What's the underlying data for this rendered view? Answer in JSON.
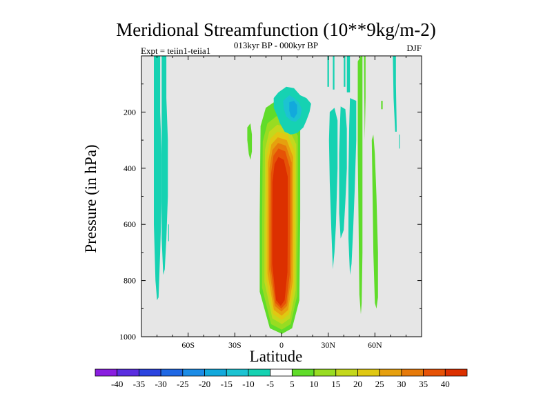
{
  "chart_data": {
    "type": "heatmap",
    "title": "Meridional Streamfunction (10**9kg/m-2)",
    "subtitle": "013kyr BP - 000kyr BP",
    "left_string": "Expt = teiin1-teiia1",
    "right_string": "DJF",
    "xlabel": "Latitude",
    "ylabel": "Pressure (in hPa)",
    "xlim": [
      -90,
      90
    ],
    "ylim": [
      1000,
      0
    ],
    "x_ticks": [
      {
        "value": -60,
        "label": "60S"
      },
      {
        "value": -30,
        "label": "30S"
      },
      {
        "value": 0,
        "label": "0"
      },
      {
        "value": 30,
        "label": "30N"
      },
      {
        "value": 60,
        "label": "60N"
      }
    ],
    "y_ticks": [
      {
        "value": 200,
        "label": "200"
      },
      {
        "value": 400,
        "label": "400"
      },
      {
        "value": 600,
        "label": "600"
      },
      {
        "value": 800,
        "label": "800"
      },
      {
        "value": 1000,
        "label": "1000"
      }
    ],
    "missing_color": "#e6e6e6",
    "colorbar": {
      "labels": [
        "-40",
        "-35",
        "-30",
        "-25",
        "-20",
        "-15",
        "-10",
        "-5",
        "5",
        "10",
        "15",
        "20",
        "25",
        "30",
        "35",
        "40"
      ],
      "colors": [
        "#8a1ee0",
        "#5a2ee0",
        "#2b44e0",
        "#1f68e4",
        "#1c8ce6",
        "#12a9dc",
        "#1cc3d2",
        "#16d2b2",
        "#ffffff",
        "#60dc2a",
        "#98dc22",
        "#c4d81c",
        "#e0c812",
        "#e6a00e",
        "#e67a0a",
        "#e65206",
        "#dc3000"
      ]
    },
    "features": [
      {
        "name": "cross-equatorial Hadley cell",
        "sign": "positive",
        "lat_range": [
          -14,
          12
        ],
        "p_range": [
          160,
          990
        ],
        "max": 40
      },
      {
        "name": "upper-level negative cell",
        "sign": "negative",
        "lat_range": [
          -5,
          18
        ],
        "p_range": [
          150,
          280
        ],
        "min": -15
      },
      {
        "name": "southern high-latitude negative band",
        "sign": "negative",
        "lat_range": [
          -82,
          -72
        ],
        "p_range": [
          0,
          870
        ],
        "min": -5
      },
      {
        "name": "northern subtropical negative band",
        "sign": "negative",
        "lat_range": [
          30,
          48
        ],
        "p_range": [
          0,
          780
        ],
        "min": -5
      },
      {
        "name": "northern mid-latitude positive band",
        "sign": "positive",
        "lat_range": [
          50,
          56
        ],
        "p_range": [
          0,
          920
        ],
        "max": 5
      },
      {
        "name": "northern high-latitude negative band",
        "sign": "negative",
        "lat_range": [
          70,
          75
        ],
        "p_range": [
          0,
          270
        ],
        "min": -5
      }
    ]
  }
}
